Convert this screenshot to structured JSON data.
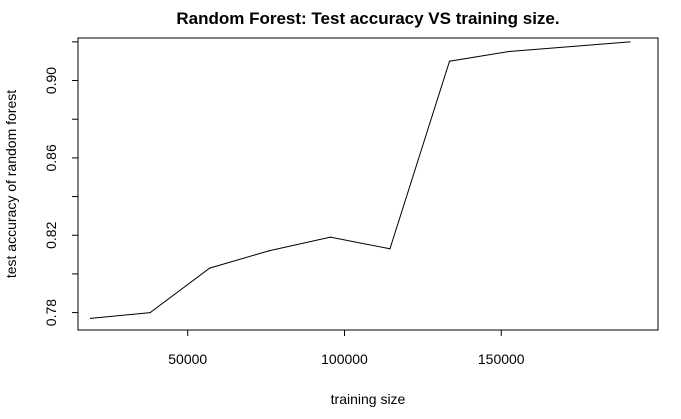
{
  "chart_data": {
    "type": "line",
    "title": "Random Forest: Test accuracy VS training size.",
    "xlabel": "training size",
    "ylabel": "test accuracy of random forest",
    "x": [
      19000,
      38000,
      57000,
      76000,
      95500,
      114500,
      133500,
      152500,
      191000
    ],
    "y": [
      0.777,
      0.78,
      0.803,
      0.812,
      0.819,
      0.813,
      0.91,
      0.915,
      0.92
    ],
    "xlim": [
      15000,
      200000
    ],
    "ylim": [
      0.771,
      0.922
    ],
    "xticks": [
      50000,
      100000,
      150000
    ],
    "xtick_labels": [
      "50000",
      "100000",
      "150000"
    ],
    "yticks": [
      0.78,
      0.82,
      0.86,
      0.9
    ],
    "ytick_labels": [
      "0.78",
      "0.82",
      "0.86",
      "0.90"
    ],
    "yticks_minor": [
      0.8,
      0.84,
      0.88,
      0.92
    ],
    "grid": false,
    "line_color": "#000000"
  }
}
